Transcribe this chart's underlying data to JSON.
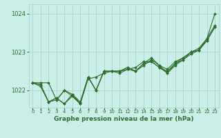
{
  "title": "Graphe pression niveau de la mer (hPa)",
  "background_color": "#cceee8",
  "grid_color": "#aad4cc",
  "line_color": "#2d6e2d",
  "marker_color": "#2d6e2d",
  "xlim": [
    -0.5,
    23.5
  ],
  "ylim": [
    1021.55,
    1024.25
  ],
  "yticks": [
    1022,
    1023,
    1024
  ],
  "xticks": [
    0,
    1,
    2,
    3,
    4,
    5,
    6,
    7,
    8,
    9,
    10,
    11,
    12,
    13,
    14,
    15,
    16,
    17,
    18,
    19,
    20,
    21,
    22,
    23
  ],
  "series": [
    [
      1022.2,
      1022.2,
      1022.2,
      1021.75,
      1022.0,
      1021.9,
      1021.65,
      1022.3,
      1022.35,
      1022.45,
      1022.5,
      1022.5,
      1022.55,
      1022.5,
      1022.65,
      1022.8,
      1022.65,
      1022.55,
      1022.75,
      1022.85,
      1023.0,
      1023.1,
      1023.35,
      1024.0
    ],
    [
      1022.2,
      1022.15,
      1021.7,
      1021.75,
      1022.0,
      1021.85,
      1021.65,
      1022.35,
      1022.0,
      1022.5,
      1022.5,
      1022.5,
      1022.6,
      1022.5,
      1022.7,
      1022.85,
      1022.65,
      1022.45,
      1022.7,
      1022.85,
      1023.0,
      1023.05,
      1023.35,
      1023.7
    ],
    [
      1022.2,
      1022.15,
      1021.7,
      1021.8,
      1021.65,
      1021.9,
      1021.7,
      1022.35,
      1022.0,
      1022.5,
      1022.5,
      1022.5,
      1022.6,
      1022.5,
      1022.7,
      1022.75,
      1022.6,
      1022.5,
      1022.7,
      1022.8,
      1023.0,
      1023.05,
      1023.3,
      1023.65
    ],
    [
      1022.2,
      1022.1,
      1021.7,
      1021.8,
      1021.65,
      1021.85,
      1021.65,
      1022.35,
      1022.0,
      1022.5,
      1022.5,
      1022.45,
      1022.55,
      1022.6,
      1022.75,
      1022.75,
      1022.6,
      1022.45,
      1022.65,
      1022.8,
      1022.95,
      1023.05,
      1023.3,
      1023.65
    ]
  ]
}
